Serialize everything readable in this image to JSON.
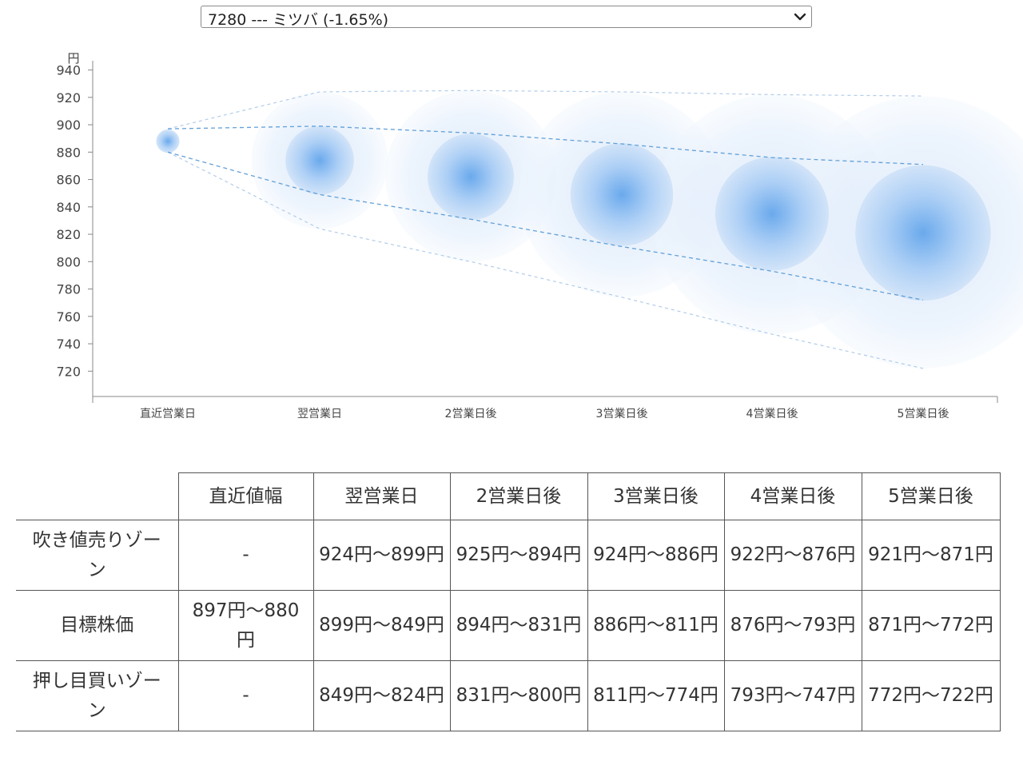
{
  "selector": {
    "selected": "7280 --- ミツバ (-1.65%)"
  },
  "chart_data": {
    "type": "bubble",
    "y_unit": "円",
    "ylim": [
      712,
      945
    ],
    "y_ticks": [
      940,
      920,
      900,
      880,
      860,
      840,
      820,
      800,
      780,
      760,
      740,
      720
    ],
    "categories": [
      "直近営業日",
      "翌営業日",
      "2営業日後",
      "3営業日後",
      "4営業日後",
      "5営業日後"
    ],
    "center": [
      888,
      874,
      862,
      849,
      835,
      821
    ],
    "target_high": [
      897,
      899,
      894,
      886,
      876,
      871
    ],
    "target_low": [
      880,
      849,
      831,
      811,
      793,
      772
    ],
    "sell_zone_high": [
      897,
      924,
      925,
      924,
      922,
      921
    ],
    "buy_zone_low": [
      880,
      824,
      800,
      774,
      747,
      722
    ],
    "colors": {
      "bubble": "#6aa9ec",
      "guide": "#5b9bd5",
      "axis": "#888888"
    }
  },
  "table": {
    "headers": [
      "",
      "直近値幅",
      "翌営業日",
      "2営業日後",
      "3営業日後",
      "4営業日後",
      "5営業日後"
    ],
    "rows": [
      {
        "label": "吹き値売りゾーン",
        "cells": [
          "-",
          "924円〜899円",
          "925円〜894円",
          "924円〜886円",
          "922円〜876円",
          "921円〜871円"
        ]
      },
      {
        "label": "目標株価",
        "cells": [
          "897円〜880円",
          "899円〜849円",
          "894円〜831円",
          "886円〜811円",
          "876円〜793円",
          "871円〜772円"
        ]
      },
      {
        "label": "押し目買いゾーン",
        "cells": [
          "-",
          "849円〜824円",
          "831円〜800円",
          "811円〜774円",
          "793円〜747円",
          "772円〜722円"
        ]
      }
    ]
  }
}
